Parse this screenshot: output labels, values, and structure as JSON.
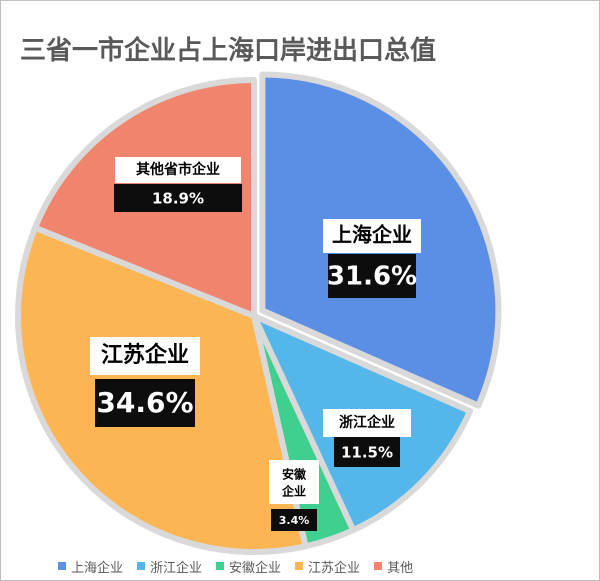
{
  "chart_data": {
    "type": "pie",
    "title": "三省一市企业占上海口岸进出口总值",
    "slices": [
      {
        "name": "上海企业",
        "legend": "上海企业",
        "value": 31.6,
        "label": "31.6%",
        "color": "#5b8fe6"
      },
      {
        "name": "浙江企业",
        "legend": "浙江企业",
        "value": 11.5,
        "label": "11.5%",
        "color": "#55b6e9"
      },
      {
        "name": "安徽企业",
        "legend": "安徽企业",
        "value": 3.4,
        "label": "3.4%",
        "color": "#3fcf8e"
      },
      {
        "name": "江苏企业",
        "legend": "江苏企业",
        "value": 34.6,
        "label": "34.6%",
        "color": "#fbb553"
      },
      {
        "name": "其他省市企业",
        "legend": "其他",
        "value": 18.9,
        "label": "18.9%",
        "color": "#f0846d"
      }
    ],
    "legend_position": "bottom"
  }
}
